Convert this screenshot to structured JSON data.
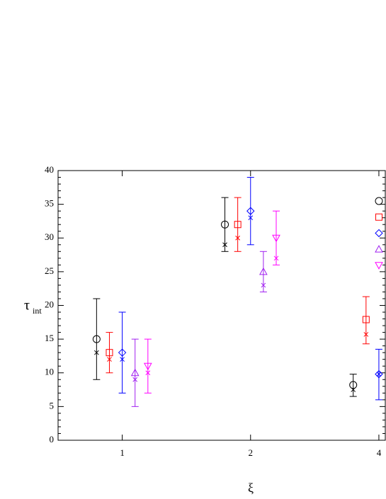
{
  "chart_data": {
    "type": "errorbar",
    "xlabel": "ξ",
    "ylabel_main": "τ",
    "ylabel_sub": "int",
    "xlim": [
      0.5,
      3.05
    ],
    "xticks": [
      {
        "value": 1,
        "label": "1"
      },
      {
        "value": 2,
        "label": "2"
      },
      {
        "value": 3,
        "label": "4"
      }
    ],
    "ylim": [
      0,
      40
    ],
    "yticks": [
      0,
      5,
      10,
      15,
      20,
      25,
      30,
      35,
      40
    ],
    "series": [
      {
        "marker": "circle",
        "color": "#000000",
        "x": [
          0.8,
          1.8,
          2.8
        ],
        "values": [
          15,
          32,
          8.2
        ],
        "err_low": [
          9,
          28,
          6.5
        ],
        "err_high": [
          21,
          36,
          9.8
        ],
        "cross": [
          13,
          29,
          7.5
        ]
      },
      {
        "marker": "square",
        "color": "#ff0000",
        "x": [
          0.9,
          1.9,
          2.9
        ],
        "values": [
          13,
          32,
          17.9
        ],
        "err_low": [
          10,
          28,
          14.3
        ],
        "err_high": [
          16,
          36,
          21.3
        ],
        "cross": [
          12,
          30,
          15.7
        ]
      },
      {
        "marker": "diamond",
        "color": "#0000ff",
        "x": [
          1.0,
          2.0,
          3.0
        ],
        "values": [
          13,
          34,
          9.8
        ],
        "err_low": [
          7,
          29,
          6
        ],
        "err_high": [
          19,
          39,
          13.5
        ],
        "cross": [
          12,
          33,
          9.8
        ]
      },
      {
        "marker": "triangle-up",
        "color": "#a020f0",
        "x": [
          1.1,
          2.1,
          null
        ],
        "values": [
          10,
          25,
          null
        ],
        "err_low": [
          5,
          22,
          null
        ],
        "err_high": [
          15,
          28,
          null
        ],
        "cross": [
          9,
          23,
          null
        ]
      },
      {
        "marker": "triangle-down",
        "color": "#ff00ff",
        "x": [
          1.2,
          2.2,
          null
        ],
        "values": [
          11,
          30,
          null
        ],
        "err_low": [
          7,
          26,
          null
        ],
        "err_high": [
          15,
          34,
          null
        ],
        "cross": [
          10,
          27,
          null
        ]
      }
    ]
  }
}
